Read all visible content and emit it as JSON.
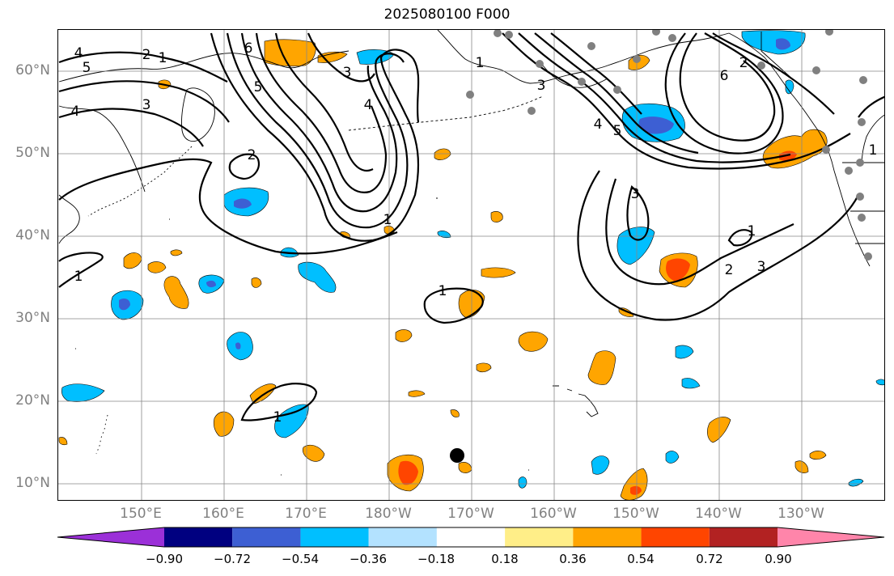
{
  "title": "2025080100 F000",
  "lat_labels": [
    "60°N",
    "50°N",
    "40°N",
    "30°N",
    "20°N",
    "10°N"
  ],
  "lon_labels": [
    "150°E",
    "160°E",
    "170°E",
    "180°W",
    "170°W",
    "160°W",
    "150°W",
    "140°W",
    "130°W"
  ],
  "colorbar": {
    "colors": [
      "#9b30d8",
      "#000080",
      "#3d5fd3",
      "#00bfff",
      "#b3e2ff",
      "#ffffff",
      "#ffee88",
      "#ffa500",
      "#ff4500",
      "#b22222",
      "#ff85aa"
    ],
    "tick_labels": [
      "−0.90",
      "−0.72",
      "−0.54",
      "−0.36",
      "−0.18",
      "0.18",
      "0.36",
      "0.54",
      "0.72",
      "0.90"
    ]
  },
  "contour_labels": [
    "1",
    "1",
    "1",
    "1",
    "1",
    "1",
    "1",
    "1",
    "2",
    "2",
    "2",
    "2",
    "3",
    "3",
    "3",
    "3",
    "3",
    "4",
    "4",
    "4",
    "4",
    "5",
    "5",
    "5",
    "6",
    "6"
  ],
  "colors": {
    "land_line": "#000000",
    "grid": "#888888",
    "station": "#808080",
    "marker": "#000000"
  }
}
